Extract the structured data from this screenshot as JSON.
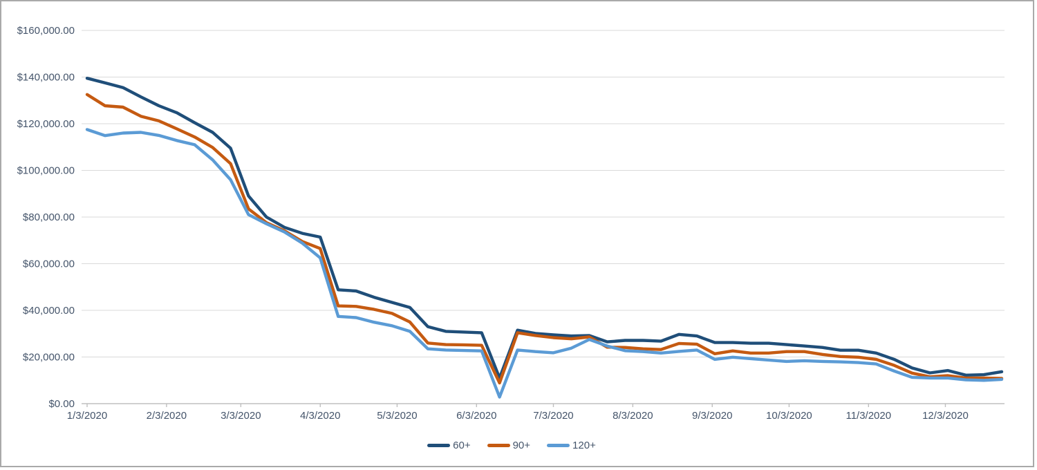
{
  "chart_data": {
    "type": "line",
    "title": "",
    "xlabel": "",
    "ylabel": "",
    "ylim": [
      0,
      160000
    ],
    "grid": "horizontal",
    "legend_position": "bottom-center",
    "y_ticks": [
      {
        "value": 0,
        "label": "$0.00"
      },
      {
        "value": 20000,
        "label": "$20,000.00"
      },
      {
        "value": 40000,
        "label": "$40,000.00"
      },
      {
        "value": 60000,
        "label": "$60,000.00"
      },
      {
        "value": 80000,
        "label": "$80,000.00"
      },
      {
        "value": 100000,
        "label": "$100,000.00"
      },
      {
        "value": 120000,
        "label": "$120,000.00"
      },
      {
        "value": 140000,
        "label": "$140,000.00"
      },
      {
        "value": 160000,
        "label": "$160,000.00"
      }
    ],
    "x_tick_labels": [
      "1/3/2020",
      "2/3/2020",
      "3/3/2020",
      "4/3/2020",
      "5/3/2020",
      "6/3/2020",
      "7/3/2020",
      "8/3/2020",
      "9/3/2020",
      "10/3/2020",
      "11/3/2020",
      "12/3/2020"
    ],
    "x": [
      "1/3/2020",
      "1/10/2020",
      "1/17/2020",
      "1/24/2020",
      "1/31/2020",
      "2/7/2020",
      "2/14/2020",
      "2/21/2020",
      "2/28/2020",
      "3/6/2020",
      "3/13/2020",
      "3/20/2020",
      "3/27/2020",
      "4/3/2020",
      "4/10/2020",
      "4/17/2020",
      "4/24/2020",
      "5/1/2020",
      "5/8/2020",
      "5/15/2020",
      "5/22/2020",
      "5/29/2020",
      "6/5/2020",
      "6/12/2020",
      "6/19/2020",
      "6/26/2020",
      "7/3/2020",
      "7/10/2020",
      "7/17/2020",
      "7/24/2020",
      "7/31/2020",
      "8/7/2020",
      "8/14/2020",
      "8/21/2020",
      "8/28/2020",
      "9/4/2020",
      "9/11/2020",
      "9/18/2020",
      "9/25/2020",
      "10/2/2020",
      "10/9/2020",
      "10/16/2020",
      "10/23/2020",
      "10/30/2020",
      "11/6/2020",
      "11/13/2020",
      "11/20/2020",
      "11/27/2020",
      "12/4/2020",
      "12/11/2020",
      "12/18/2020",
      "12/25/2020"
    ],
    "series": [
      {
        "name": "60+",
        "color": "#1F4E79",
        "values": [
          139500,
          137500,
          135500,
          131500,
          127700,
          124700,
          120400,
          116300,
          109500,
          89000,
          80000,
          75600,
          73000,
          71400,
          48800,
          48300,
          45600,
          43400,
          41200,
          33000,
          31000,
          30700,
          30400,
          11000,
          31500,
          30100,
          29500,
          29000,
          29200,
          26500,
          27100,
          27100,
          26800,
          29700,
          29000,
          26200,
          26200,
          25900,
          25900,
          25300,
          24700,
          24100,
          22900,
          22900,
          21700,
          19000,
          15300,
          13200,
          14200,
          12200,
          12400,
          13700
        ]
      },
      {
        "name": "90+",
        "color": "#C55A11",
        "values": [
          132500,
          127700,
          127100,
          123200,
          121200,
          117800,
          114300,
          109800,
          102900,
          83500,
          77600,
          74100,
          69500,
          66500,
          41900,
          41700,
          40400,
          38700,
          35000,
          26000,
          25300,
          25200,
          25000,
          8900,
          30400,
          29200,
          28300,
          27800,
          28600,
          24200,
          24100,
          23500,
          23200,
          25800,
          25500,
          21400,
          22600,
          21700,
          21700,
          22300,
          22300,
          21100,
          20200,
          19900,
          19000,
          16400,
          13100,
          11500,
          12000,
          11000,
          11000,
          10800
        ]
      },
      {
        "name": "120+",
        "color": "#5B9BD5",
        "values": [
          117500,
          114900,
          116000,
          116300,
          115000,
          112800,
          111000,
          104500,
          96000,
          81000,
          77100,
          73600,
          68800,
          62500,
          37400,
          36900,
          34900,
          33400,
          31000,
          23500,
          23000,
          22800,
          22600,
          2800,
          23000,
          22300,
          21800,
          23800,
          27500,
          24700,
          22700,
          22300,
          21700,
          22400,
          23000,
          19000,
          19900,
          19300,
          18700,
          18100,
          18400,
          18100,
          17900,
          17600,
          17000,
          14000,
          11300,
          11000,
          11000,
          10200,
          10000,
          10400
        ]
      }
    ],
    "colors": {
      "gridline": "#D9D9D9",
      "axis_line": "#BFBFBF",
      "tick_mark": "#BFBFBF",
      "label_text": "#44546A",
      "frame_border": "#A9A9A9",
      "background": "#FFFFFF"
    }
  },
  "legend": {
    "items": [
      {
        "label": "60+",
        "color": "#1F4E79"
      },
      {
        "label": "90+",
        "color": "#C55A11"
      },
      {
        "label": "120+",
        "color": "#5B9BD5"
      }
    ]
  }
}
